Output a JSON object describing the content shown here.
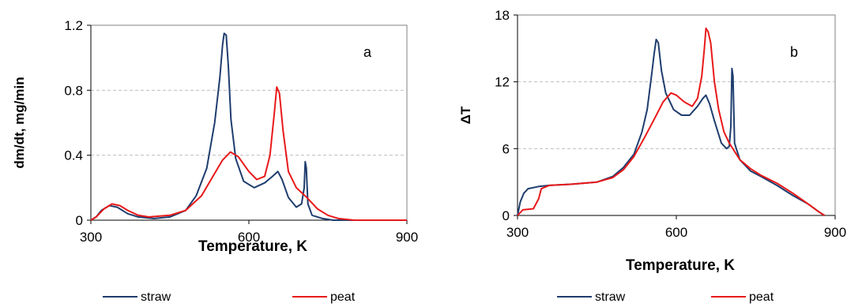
{
  "colors": {
    "straw": "#1f3d6e",
    "peat": "#e8191a",
    "grid": "#bfbfbf",
    "axis": "#808080"
  },
  "chart_data": [
    {
      "type": "line",
      "panel_label": "a",
      "xlabel": "Temperature, K",
      "ylabel": "dm/dt, mg/min",
      "xlim": [
        300,
        900
      ],
      "ylim": [
        0,
        1.2
      ],
      "xticks": [
        "300",
        "600",
        "900"
      ],
      "yticks": [
        "0",
        "0.4",
        "0.8",
        "1.2"
      ],
      "xtick_values": [
        300,
        600,
        900
      ],
      "ytick_values": [
        0,
        0.4,
        0.8,
        1.2
      ],
      "grid": "horizontal dashed",
      "legend_position": "bottom",
      "series": [
        {
          "name": "straw",
          "color_key": "straw",
          "points": [
            [
              300,
              0
            ],
            [
              310,
              0.02
            ],
            [
              320,
              0.06
            ],
            [
              335,
              0.09
            ],
            [
              350,
              0.08
            ],
            [
              370,
              0.04
            ],
            [
              390,
              0.02
            ],
            [
              420,
              0.01
            ],
            [
              450,
              0.02
            ],
            [
              480,
              0.06
            ],
            [
              500,
              0.15
            ],
            [
              520,
              0.32
            ],
            [
              535,
              0.6
            ],
            [
              545,
              0.88
            ],
            [
              550,
              1.08
            ],
            [
              553,
              1.15
            ],
            [
              557,
              1.14
            ],
            [
              561,
              0.95
            ],
            [
              566,
              0.62
            ],
            [
              575,
              0.38
            ],
            [
              590,
              0.24
            ],
            [
              610,
              0.2
            ],
            [
              630,
              0.23
            ],
            [
              645,
              0.27
            ],
            [
              655,
              0.3
            ],
            [
              663,
              0.25
            ],
            [
              675,
              0.14
            ],
            [
              690,
              0.08
            ],
            [
              700,
              0.1
            ],
            [
              705,
              0.2
            ],
            [
              707,
              0.36
            ],
            [
              709,
              0.32
            ],
            [
              712,
              0.1
            ],
            [
              720,
              0.03
            ],
            [
              740,
              0.01
            ],
            [
              760,
              0
            ],
            [
              900,
              0
            ]
          ]
        },
        {
          "name": "peat",
          "color_key": "peat",
          "points": [
            [
              300,
              0
            ],
            [
              310,
              0.02
            ],
            [
              325,
              0.07
            ],
            [
              340,
              0.1
            ],
            [
              355,
              0.09
            ],
            [
              370,
              0.06
            ],
            [
              390,
              0.03
            ],
            [
              410,
              0.02
            ],
            [
              450,
              0.03
            ],
            [
              480,
              0.06
            ],
            [
              510,
              0.15
            ],
            [
              530,
              0.26
            ],
            [
              550,
              0.37
            ],
            [
              565,
              0.42
            ],
            [
              580,
              0.39
            ],
            [
              600,
              0.3
            ],
            [
              615,
              0.25
            ],
            [
              630,
              0.27
            ],
            [
              640,
              0.4
            ],
            [
              648,
              0.65
            ],
            [
              653,
              0.82
            ],
            [
              658,
              0.78
            ],
            [
              665,
              0.55
            ],
            [
              675,
              0.3
            ],
            [
              690,
              0.2
            ],
            [
              710,
              0.14
            ],
            [
              730,
              0.07
            ],
            [
              750,
              0.03
            ],
            [
              770,
              0.01
            ],
            [
              800,
              0
            ],
            [
              900,
              0
            ]
          ]
        }
      ]
    },
    {
      "type": "line",
      "panel_label": "b",
      "xlabel": "Temperature, K",
      "ylabel": "ΔT",
      "xlim": [
        300,
        900
      ],
      "ylim": [
        0,
        18
      ],
      "xticks": [
        "300",
        "600",
        "900"
      ],
      "yticks": [
        "0",
        "6",
        "12",
        "18"
      ],
      "xtick_values": [
        300,
        600,
        900
      ],
      "ytick_values": [
        0,
        6,
        12,
        18
      ],
      "grid": "horizontal dashed",
      "legend_position": "bottom",
      "series": [
        {
          "name": "straw",
          "color_key": "straw",
          "points": [
            [
              300,
              0
            ],
            [
              305,
              1.2
            ],
            [
              312,
              2.0
            ],
            [
              320,
              2.4
            ],
            [
              340,
              2.6
            ],
            [
              360,
              2.7
            ],
            [
              400,
              2.8
            ],
            [
              450,
              3.0
            ],
            [
              480,
              3.5
            ],
            [
              500,
              4.3
            ],
            [
              520,
              5.5
            ],
            [
              535,
              7.5
            ],
            [
              545,
              9.5
            ],
            [
              553,
              12.5
            ],
            [
              558,
              14.5
            ],
            [
              562,
              15.8
            ],
            [
              566,
              15.5
            ],
            [
              572,
              13.0
            ],
            [
              580,
              11.0
            ],
            [
              595,
              9.5
            ],
            [
              610,
              9.0
            ],
            [
              625,
              9.0
            ],
            [
              640,
              9.8
            ],
            [
              650,
              10.5
            ],
            [
              656,
              10.8
            ],
            [
              663,
              10.0
            ],
            [
              672,
              8.5
            ],
            [
              685,
              6.5
            ],
            [
              695,
              6.0
            ],
            [
              700,
              6.2
            ],
            [
              703,
              8.0
            ],
            [
              705,
              13.2
            ],
            [
              707,
              12.5
            ],
            [
              710,
              6.5
            ],
            [
              720,
              5.0
            ],
            [
              740,
              4.0
            ],
            [
              760,
              3.5
            ],
            [
              790,
              2.7
            ],
            [
              820,
              1.8
            ],
            [
              850,
              1.0
            ],
            [
              870,
              0.3
            ],
            [
              880,
              0
            ]
          ]
        },
        {
          "name": "peat",
          "color_key": "peat",
          "points": [
            [
              300,
              0
            ],
            [
              310,
              0.5
            ],
            [
              330,
              0.6
            ],
            [
              340,
              1.5
            ],
            [
              345,
              2.4
            ],
            [
              360,
              2.7
            ],
            [
              400,
              2.8
            ],
            [
              450,
              3.0
            ],
            [
              480,
              3.4
            ],
            [
              500,
              4.1
            ],
            [
              520,
              5.3
            ],
            [
              540,
              7.0
            ],
            [
              560,
              8.8
            ],
            [
              575,
              10.2
            ],
            [
              590,
              11.0
            ],
            [
              600,
              10.8
            ],
            [
              615,
              10.2
            ],
            [
              630,
              9.8
            ],
            [
              640,
              10.5
            ],
            [
              648,
              12.5
            ],
            [
              653,
              15.0
            ],
            [
              656,
              16.8
            ],
            [
              660,
              16.5
            ],
            [
              665,
              15.5
            ],
            [
              672,
              12.0
            ],
            [
              680,
              9.5
            ],
            [
              690,
              7.5
            ],
            [
              700,
              6.5
            ],
            [
              720,
              5.0
            ],
            [
              740,
              4.2
            ],
            [
              760,
              3.6
            ],
            [
              790,
              2.9
            ],
            [
              820,
              2.0
            ],
            [
              850,
              1.0
            ],
            [
              870,
              0.3
            ],
            [
              880,
              0
            ]
          ]
        }
      ]
    }
  ]
}
